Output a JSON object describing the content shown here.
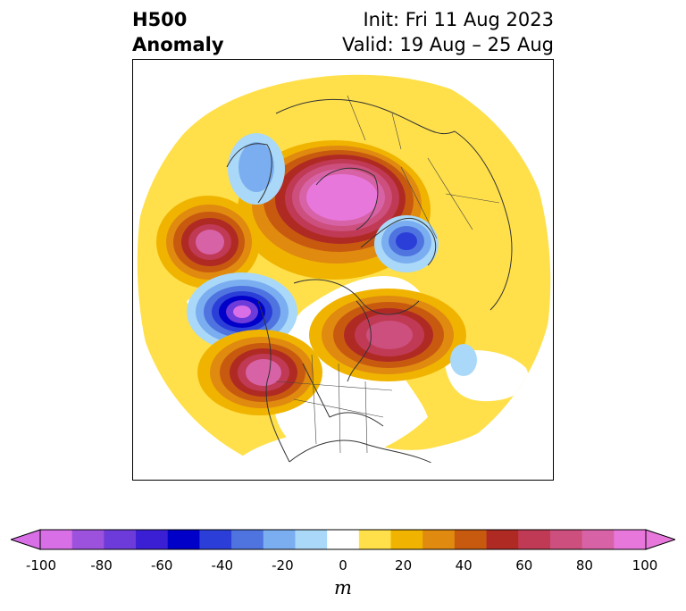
{
  "title": {
    "left_line1": "H500",
    "left_line2": "Anomaly",
    "right_line1": "Init: Fri 11 Aug 2023",
    "right_line2": "Valid: 19 Aug – 25 Aug"
  },
  "map": {
    "projection": "polar stereographic, Northern Hemisphere",
    "features": [
      {
        "name": "positive-anomaly-greenland-arctic",
        "sign": "positive",
        "peak_m": 100,
        "region": "Greenland / Arctic"
      },
      {
        "name": "positive-anomaly-north-pacific",
        "sign": "positive",
        "peak_m": 90,
        "region": "North Pacific"
      },
      {
        "name": "negative-anomaly-gulf-of-alaska",
        "sign": "negative",
        "peak_m": -90,
        "region": "Gulf of Alaska"
      },
      {
        "name": "positive-anomaly-pacific-northwest",
        "sign": "positive",
        "peak_m": 90,
        "region": "Pacific Northwest"
      },
      {
        "name": "positive-anomaly-eastern-canada",
        "sign": "positive",
        "peak_m": 80,
        "region": "Eastern Canada / Hudson Bay"
      },
      {
        "name": "negative-anomaly-scandinavia",
        "sign": "negative",
        "peak_m": -60,
        "region": "Scandinavia / Barents Sea"
      },
      {
        "name": "negative-anomaly-east-asia",
        "sign": "negative",
        "peak_m": -30,
        "region": "East Asia"
      },
      {
        "name": "negative-anomaly-north-atlantic",
        "sign": "negative",
        "peak_m": -20,
        "region": "Central North Atlantic"
      }
    ]
  },
  "colorbar": {
    "ticks": [
      "-100",
      "-80",
      "-60",
      "-40",
      "-20",
      "0",
      "20",
      "40",
      "60",
      "80",
      "100"
    ],
    "units": "m",
    "colors": [
      "#d86fe6",
      "#9d52dd",
      "#6d3bd9",
      "#3b1fd4",
      "#0000c8",
      "#2b3fd8",
      "#4f74e0",
      "#7aaef0",
      "#aad8f8",
      "#ffffff",
      "#ffe04a",
      "#f0b400",
      "#e08a10",
      "#c85a10",
      "#b02a24",
      "#c03a55",
      "#cc4f7d",
      "#d862a6",
      "#e777db"
    ],
    "extend_min_color": "#d86fe6",
    "extend_max_color": "#e777db"
  }
}
